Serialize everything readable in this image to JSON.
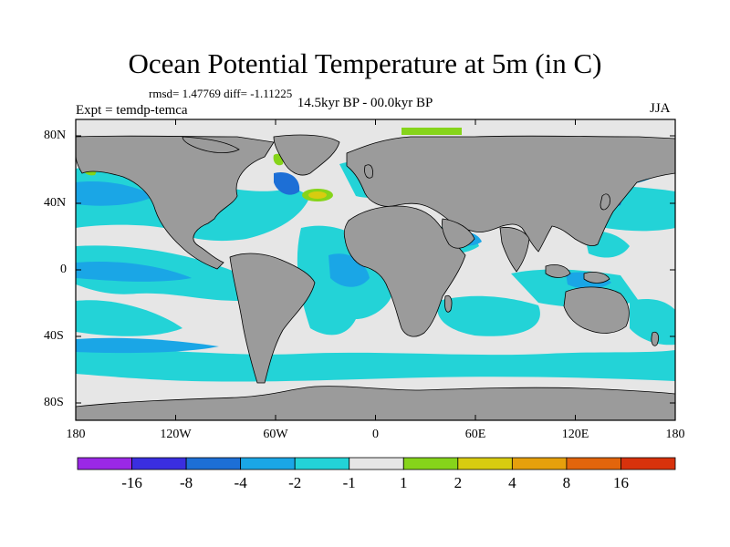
{
  "figure": {
    "title": "Ocean Potential Temperature at 5m (in C)",
    "stats": "rmsd= 1.47769  diff= -1.11225",
    "period": "14.5kyr BP - 00.0kyr BP",
    "experiment": "Expt = temdp-temca",
    "season": "JJA"
  },
  "axes": {
    "lon_labels": [
      "180",
      "120W",
      "60W",
      "0",
      "60E",
      "120E",
      "180"
    ],
    "lat_labels": [
      "80N",
      "40N",
      "0",
      "40S",
      "80S"
    ]
  },
  "colorbar": {
    "colors": [
      "#9a28e6",
      "#3a2ee0",
      "#1d6fd6",
      "#1aa6e6",
      "#23d3d7",
      "#e6e6e6",
      "#86d41a",
      "#d8cc10",
      "#e6a00c",
      "#e2650c",
      "#d8320c"
    ],
    "labels": [
      "-16",
      "-8",
      "-4",
      "-2",
      "-1",
      "1",
      "2",
      "4",
      "8",
      "16"
    ]
  },
  "map_colors": {
    "land": "#9b9b9b",
    "near_zero": "#e6e6e6",
    "minus1_to_minus2": "#23d3d7",
    "minus2_to_minus4": "#1aa6e6",
    "minus4_to_minus8": "#1d6fd6",
    "minus8_to_minus16": "#3a2ee0",
    "plus1_to_plus2": "#86d41a",
    "plus2_to_plus4": "#d8cc10"
  }
}
